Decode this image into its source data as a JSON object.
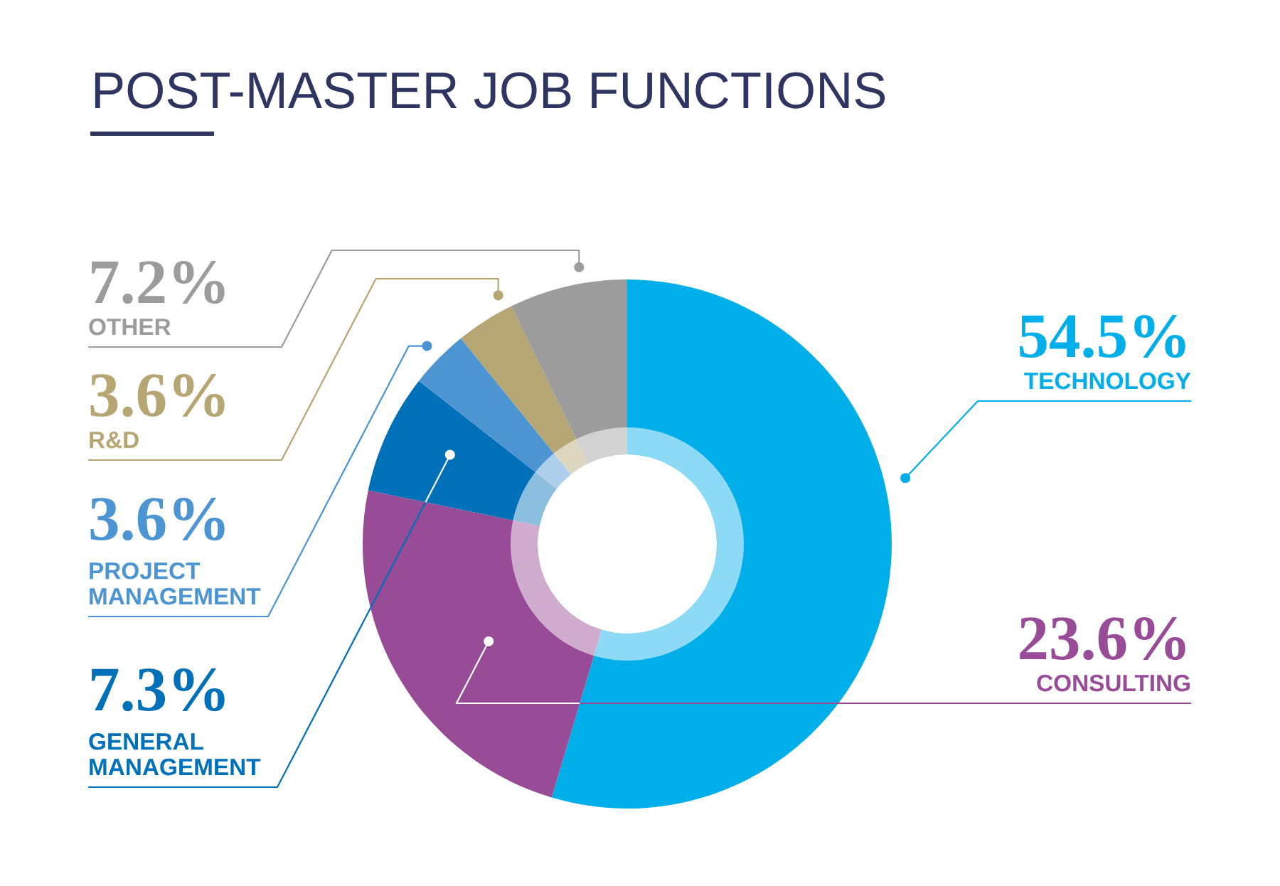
{
  "chart_data": {
    "type": "donut",
    "title": "POST-MASTER JOB FUNCTIONS",
    "categories": [
      "TECHNOLOGY",
      "CONSULTING",
      "GENERAL\nMANAGEMENT",
      "PROJECT\nMANAGEMENT",
      "R&D",
      "OTHER"
    ],
    "values": [
      54.5,
      23.6,
      7.3,
      3.6,
      3.6,
      7.2
    ],
    "colors": [
      "#00aee9",
      "#984b96",
      "#0070b8",
      "#4d95d2",
      "#b6a674",
      "#9c9c9c"
    ],
    "value_labels": [
      "54.5%",
      "23.6%",
      "7.3%",
      "3.6%",
      "3.6%",
      "7.2%"
    ]
  }
}
